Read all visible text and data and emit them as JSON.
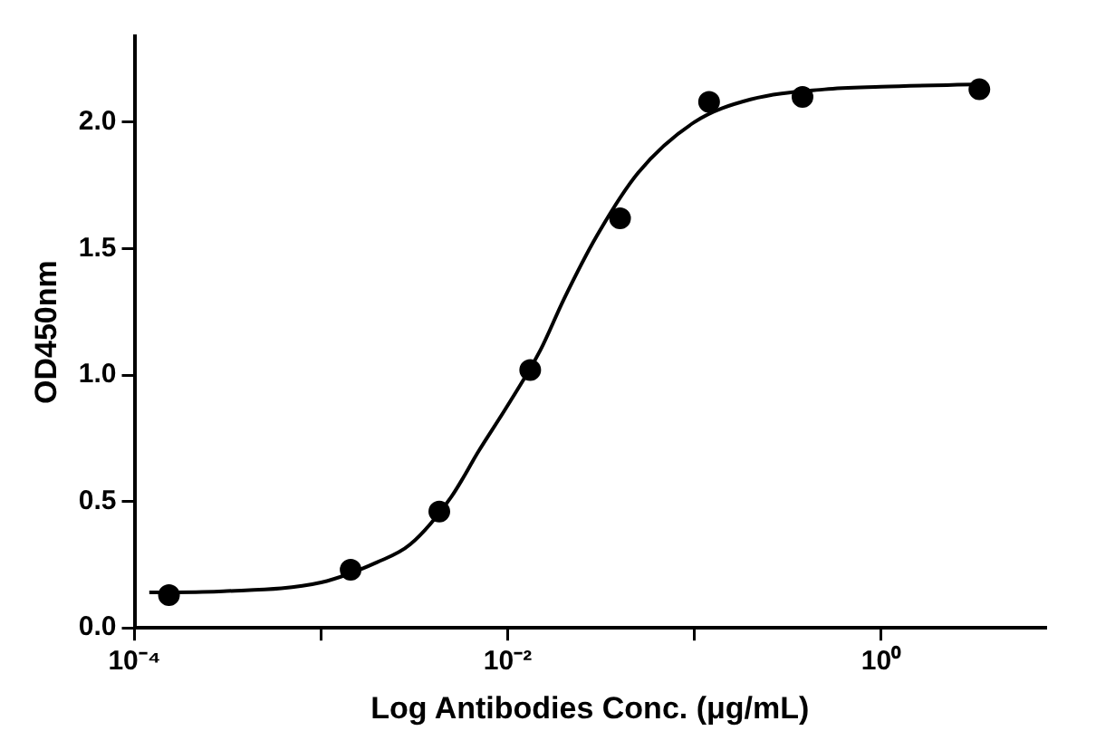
{
  "chart_data": {
    "type": "scatter",
    "xlabel": "Log Antibodies Conc. (μg/mL)",
    "ylabel": "OD450nm",
    "log": "x",
    "grid": false,
    "legend": false,
    "xlim": [
      0.0001,
      7.6
    ],
    "xticks": [
      {
        "value": 0.0001,
        "label": "10⁻⁴"
      },
      {
        "value": 0.001,
        "label": null
      },
      {
        "value": 0.01,
        "label": "10⁻²"
      },
      {
        "value": 0.1,
        "label": null
      },
      {
        "value": 1,
        "label": "10⁰"
      }
    ],
    "ylim": [
      0,
      2.34
    ],
    "yticks": [
      {
        "value": 0,
        "label": "0.0"
      },
      0.5,
      {
        "value": 1,
        "label": "1.0"
      },
      1.5,
      {
        "value": 2,
        "label": "2.0"
      }
    ],
    "series": [
      {
        "type": "line",
        "color": "#000000",
        "marker": "none",
        "line_style": "solid",
        "x": [
          0.00012,
          0.0003,
          0.001,
          0.002,
          0.003,
          0.005,
          0.007,
          0.01,
          0.015,
          0.02,
          0.03,
          0.05,
          0.1,
          0.2,
          0.5,
          1,
          3.4
        ],
        "values": [
          0.14,
          0.145,
          0.18,
          0.26,
          0.33,
          0.52,
          0.7,
          0.88,
          1.1,
          1.3,
          1.55,
          1.8,
          2.0,
          2.09,
          2.13,
          2.14,
          2.15
        ]
      },
      {
        "color": "#000000",
        "marker": "circle",
        "x": [
          0.000153,
          0.00144,
          0.0043,
          0.0132,
          0.04,
          0.12,
          0.38,
          3.37
        ],
        "values": [
          0.13,
          0.23,
          0.46,
          1.02,
          1.62,
          2.08,
          2.1,
          2.13
        ]
      }
    ]
  }
}
